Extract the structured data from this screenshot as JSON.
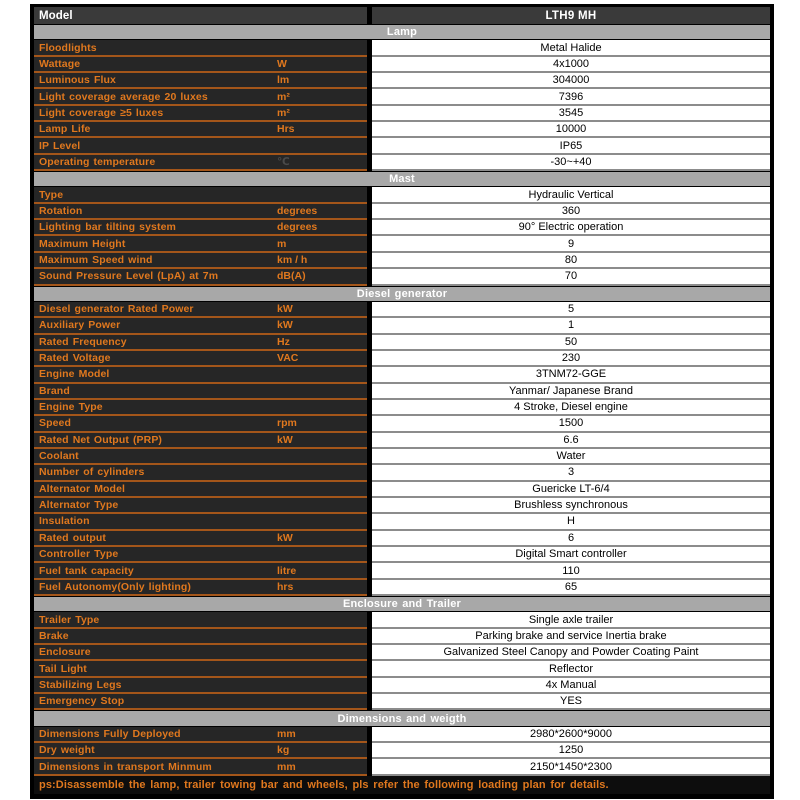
{
  "header": {
    "model_label": "Model",
    "model_value": "LTH9 MH"
  },
  "sections": [
    {
      "title": "Lamp",
      "rows": [
        {
          "label": "Floodlights",
          "unit": "",
          "value": "Metal Halide"
        },
        {
          "label": "Wattage",
          "unit": "W",
          "value": "4x1000"
        },
        {
          "label": "Luminous Flux",
          "unit": "lm",
          "value": "304000"
        },
        {
          "label": "Light coverage average 20 luxes",
          "unit": "m²",
          "value": "7396"
        },
        {
          "label": "Light coverage ≥5 luxes",
          "unit": "m²",
          "value": "3545"
        },
        {
          "label": "Lamp Life",
          "unit": "Hrs",
          "value": "10000"
        },
        {
          "label": "IP Level",
          "unit": "",
          "value": "IP65"
        },
        {
          "label": "Operating temperature",
          "unit": "℃",
          "unit_muted": true,
          "value": "-30~+40"
        }
      ]
    },
    {
      "title": "Mast",
      "rows": [
        {
          "label": "Type",
          "unit": "",
          "value": "Hydraulic Vertical"
        },
        {
          "label": "Rotation",
          "unit": "degrees",
          "value": "360"
        },
        {
          "label": "Lighting bar tilting system",
          "unit": "degrees",
          "value": "90° Electric operation"
        },
        {
          "label": "Maximum Height",
          "unit": "m",
          "value": "9"
        },
        {
          "label": "Maximum Speed wind",
          "unit": "km / h",
          "value": "80"
        },
        {
          "label": "Sound Pressure Level (LpA) at 7m",
          "unit": "dB(A)",
          "value": "70"
        }
      ]
    },
    {
      "title": "Diesel generator",
      "rows": [
        {
          "label": "Diesel generator Rated Power",
          "unit": "kW",
          "value": "5"
        },
        {
          "label": "Auxiliary Power",
          "unit": "kW",
          "value": "1"
        },
        {
          "label": "Rated Frequency",
          "unit": "Hz",
          "value": "50"
        },
        {
          "label": "Rated Voltage",
          "unit": "VAC",
          "value": "230"
        },
        {
          "label": "Engine Model",
          "unit": "",
          "value": "3TNM72-GGE"
        },
        {
          "label": "Brand",
          "unit": "",
          "value": "Yanmar/ Japanese Brand"
        },
        {
          "label": "Engine Type",
          "unit": "",
          "value": "4 Stroke, Diesel engine"
        },
        {
          "label": "Speed",
          "unit": "rpm",
          "value": "1500"
        },
        {
          "label": "Rated Net Output (PRP)",
          "unit": "kW",
          "value": "6.6"
        },
        {
          "label": "Coolant",
          "unit": "",
          "value": "Water"
        },
        {
          "label": "Number of cylinders",
          "unit": "",
          "value": "3"
        },
        {
          "label": "Alternator Model",
          "unit": "",
          "value": "Guericke  LT-6/4"
        },
        {
          "label": "Alternator Type",
          "unit": "",
          "value": "Brushless synchronous"
        },
        {
          "label": "Insulation",
          "unit": "",
          "value": "H"
        },
        {
          "label": "Rated output",
          "unit": "kW",
          "value": "6"
        },
        {
          "label": "Controller Type",
          "unit": "",
          "value": "Digital Smart controller"
        },
        {
          "label": "Fuel tank capacity",
          "unit": "litre",
          "value": "110"
        },
        {
          "label": "Fuel Autonomy(Only lighting)",
          "unit": "hrs",
          "value": "65"
        }
      ]
    },
    {
      "title": "Enclosure and Trailer",
      "rows": [
        {
          "label": "Trailer Type",
          "unit": "",
          "value": "Single axle trailer"
        },
        {
          "label": "Brake",
          "unit": "",
          "value": "Parking brake and service Inertia brake"
        },
        {
          "label": "Enclosure",
          "unit": "",
          "value": "Galvanized Steel Canopy and Powder Coating Paint"
        },
        {
          "label": "Tail Light",
          "unit": "",
          "value": "Reflector"
        },
        {
          "label": "Stabilizing Legs",
          "unit": "",
          "value": "4x Manual"
        },
        {
          "label": "Emergency Stop",
          "unit": "",
          "value": "YES"
        }
      ]
    },
    {
      "title": "Dimensions and weigth",
      "rows": [
        {
          "label": "Dimensions Fully Deployed",
          "unit": "mm",
          "value": "2980*2600*9000"
        },
        {
          "label": "Dry weight",
          "unit": "kg",
          "value": "1250"
        },
        {
          "label": "Dimensions in transport Minmum",
          "unit": "mm",
          "value": "2150*1450*2300"
        }
      ]
    }
  ],
  "footer": {
    "note": "ps:Disassemble the lamp, trailer towing bar and wheels, pls refer the following loading plan for details."
  },
  "colors": {
    "accent_orange": "#e0781e",
    "row_border_orange": "#a4561a",
    "dark_cell": "#262626",
    "section_gray": "#a8a8a8",
    "model_row": "#3a3a3a",
    "value_border_gray": "#8c8c8c"
  }
}
